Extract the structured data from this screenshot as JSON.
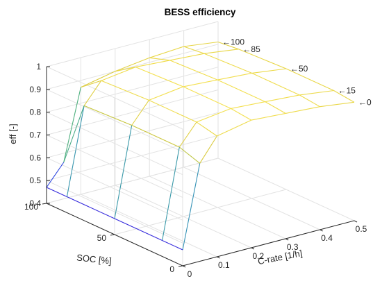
{
  "chart_data": {
    "type": "surface",
    "title": "BESS efficiency",
    "xlabel": "C-rate [1/h]",
    "ylabel": "SOC [%]",
    "zlabel": "eff [-]",
    "xlim": [
      0,
      0.5
    ],
    "ylim": [
      0,
      100
    ],
    "zlim": [
      0.4,
      1
    ],
    "x_ticks": [
      "0",
      "0.1",
      "0.2",
      "0.3",
      "0.4",
      "0.5"
    ],
    "y_ticks": [
      "0",
      "50",
      "100"
    ],
    "z_ticks": [
      "0.4",
      "0.5",
      "0.6",
      "0.7",
      "0.8",
      "0.9",
      "1"
    ],
    "colormap": "parula",
    "grid": true,
    "c_rate": [
      0,
      0.05,
      0.1,
      0.2,
      0.3,
      0.4,
      0.5
    ],
    "soc": [
      0,
      15,
      50,
      85,
      100
    ],
    "efficiency": [
      [
        0.47,
        0.83,
        0.93,
        0.96,
        0.95,
        0.94,
        0.92
      ],
      [
        0.47,
        0.86,
        0.95,
        0.97,
        0.96,
        0.95,
        0.93
      ],
      [
        0.47,
        0.86,
        0.95,
        0.97,
        0.96,
        0.95,
        0.93
      ],
      [
        0.47,
        0.85,
        0.94,
        0.96,
        0.95,
        0.94,
        0.92
      ],
      [
        0.47,
        0.56,
        0.87,
        0.9,
        0.92,
        0.93,
        0.91
      ]
    ],
    "annotations": [
      {
        "soc": 100,
        "text": "100"
      },
      {
        "soc": 85,
        "text": "85"
      },
      {
        "soc": 50,
        "text": "50"
      },
      {
        "soc": 15,
        "text": "15"
      },
      {
        "soc": 0,
        "text": "0"
      }
    ],
    "annotation_arrow": "←"
  }
}
